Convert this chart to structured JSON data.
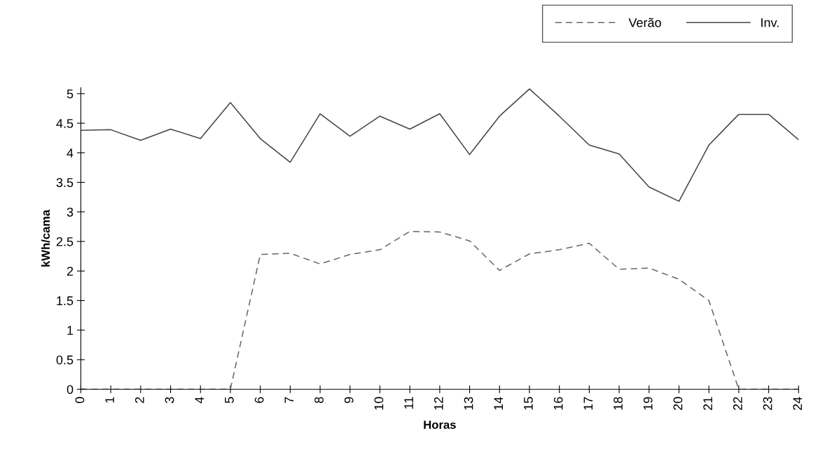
{
  "chart_data": {
    "type": "line",
    "xlabel": "Horas",
    "ylabel": "kWh/cama",
    "categories": [
      "0",
      "1",
      "2",
      "3",
      "4",
      "5",
      "6",
      "7",
      "8",
      "9",
      "10",
      "11",
      "12",
      "13",
      "14",
      "15",
      "16",
      "17",
      "18",
      "19",
      "20",
      "21",
      "22",
      "23",
      "24"
    ],
    "series": [
      {
        "name": "Verão",
        "color": "#666666",
        "line_style": "dashed",
        "values": [
          0,
          0,
          0,
          0,
          0,
          0,
          2.28,
          2.3,
          2.12,
          2.28,
          2.36,
          2.67,
          2.66,
          2.51,
          2.01,
          2.29,
          2.36,
          2.47,
          2.03,
          2.05,
          1.86,
          1.5,
          0,
          0,
          0
        ]
      },
      {
        "name": "Inv.",
        "color": "#444444",
        "line_style": "solid",
        "values": [
          4.38,
          4.39,
          4.21,
          4.4,
          4.24,
          4.85,
          4.24,
          3.84,
          4.66,
          4.28,
          4.62,
          4.4,
          4.66,
          3.97,
          4.62,
          5.08,
          4.62,
          4.13,
          3.98,
          3.42,
          3.18,
          4.13,
          4.65,
          4.65,
          4.22
        ]
      }
    ],
    "ylim": [
      0,
      5.1
    ],
    "yticks": [
      0,
      0.5,
      1,
      1.5,
      2,
      2.5,
      3,
      3.5,
      4,
      4.5,
      5
    ],
    "grid": false,
    "legend": "top right",
    "marker": "none"
  }
}
